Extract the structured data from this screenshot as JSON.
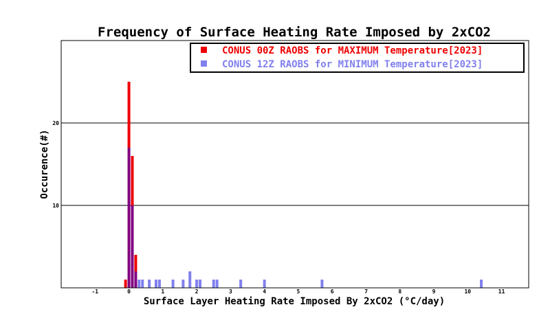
{
  "chart_data": {
    "type": "bar",
    "title": "Frequency of Surface Heating Rate Imposed by 2xCO2",
    "xlabel": "Surface Layer Heating Rate Imposed By 2xCO2 (°C/day)",
    "ylabel": "Occurence(#)",
    "xlim": [
      -2,
      11.8
    ],
    "ylim": [
      0,
      30
    ],
    "x_ticks": [
      -1,
      0,
      1,
      2,
      3,
      4,
      5,
      6,
      7,
      8,
      9,
      10,
      11
    ],
    "y_ticks": [
      10,
      20
    ],
    "grid": "horizontal",
    "legend_position": "top-right",
    "overlap_color": "#800080",
    "series": [
      {
        "name": "CONUS 00Z RAOBS for MAXIMUM Temperature[2023]",
        "color": "#ee0000",
        "points": [
          {
            "x": -0.1,
            "y": 1
          },
          {
            "x": 0.0,
            "y": 25
          },
          {
            "x": 0.1,
            "y": 16
          },
          {
            "x": 0.2,
            "y": 4
          }
        ]
      },
      {
        "name": "CONUS 12Z RAOBS for MINIMUM Temperature[2023]",
        "color": "#8080ee",
        "points": [
          {
            "x": 0.0,
            "y": 17
          },
          {
            "x": 0.1,
            "y": 10
          },
          {
            "x": 0.2,
            "y": 2
          },
          {
            "x": 0.3,
            "y": 1
          },
          {
            "x": 0.4,
            "y": 1
          },
          {
            "x": 0.6,
            "y": 1
          },
          {
            "x": 0.8,
            "y": 1
          },
          {
            "x": 0.9,
            "y": 1
          },
          {
            "x": 1.3,
            "y": 1
          },
          {
            "x": 1.6,
            "y": 1
          },
          {
            "x": 1.8,
            "y": 2
          },
          {
            "x": 2.0,
            "y": 1
          },
          {
            "x": 2.1,
            "y": 1
          },
          {
            "x": 2.5,
            "y": 1
          },
          {
            "x": 2.6,
            "y": 1
          },
          {
            "x": 3.3,
            "y": 1
          },
          {
            "x": 4.0,
            "y": 1
          },
          {
            "x": 5.7,
            "y": 1
          },
          {
            "x": 10.4,
            "y": 1
          }
        ]
      }
    ]
  }
}
